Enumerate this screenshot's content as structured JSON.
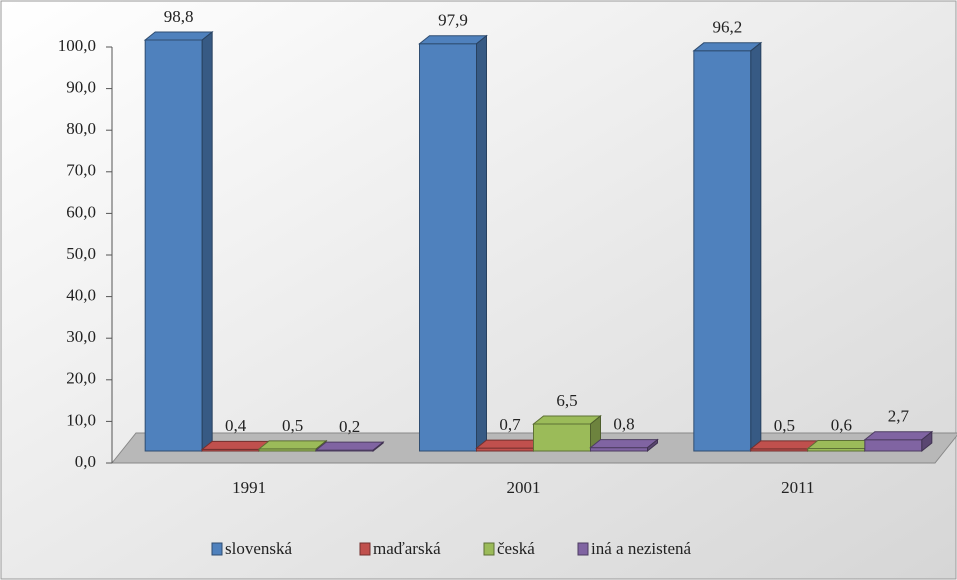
{
  "chart_data": {
    "type": "bar3d",
    "categories": [
      "1991",
      "2001",
      "2011"
    ],
    "series": [
      {
        "name": "slovenská",
        "color": "#4f81bd",
        "values": [
          98.8,
          97.9,
          96.2
        ],
        "value_labels": [
          "98,8",
          "97,9",
          "96,2"
        ]
      },
      {
        "name": "maďarská",
        "color": "#c0504d",
        "values": [
          0.4,
          0.7,
          0.5
        ],
        "value_labels": [
          "0,4",
          "0,7",
          "0,5"
        ]
      },
      {
        "name": "česká",
        "color": "#9bbb59",
        "values": [
          0.5,
          6.5,
          0.6
        ],
        "value_labels": [
          "0,5",
          "6,5",
          "0,6"
        ]
      },
      {
        "name": "iná a nezistená",
        "color": "#8064a2",
        "values": [
          0.2,
          0.8,
          2.7
        ],
        "value_labels": [
          "0,2",
          "0,8",
          "2,7"
        ]
      }
    ],
    "ylim": [
      0,
      100
    ],
    "yticks": [
      {
        "value": 0,
        "label": "0,0"
      },
      {
        "value": 10,
        "label": "10,0"
      },
      {
        "value": 20,
        "label": "20,0"
      },
      {
        "value": 30,
        "label": "30,0"
      },
      {
        "value": 40,
        "label": "40,0"
      },
      {
        "value": 50,
        "label": "50,0"
      },
      {
        "value": 60,
        "label": "60,0"
      },
      {
        "value": 70,
        "label": "70,0"
      },
      {
        "value": 80,
        "label": "80,0"
      },
      {
        "value": 90,
        "label": "90,0"
      },
      {
        "value": 100,
        "label": "100,0"
      }
    ],
    "legend": "bottom"
  }
}
